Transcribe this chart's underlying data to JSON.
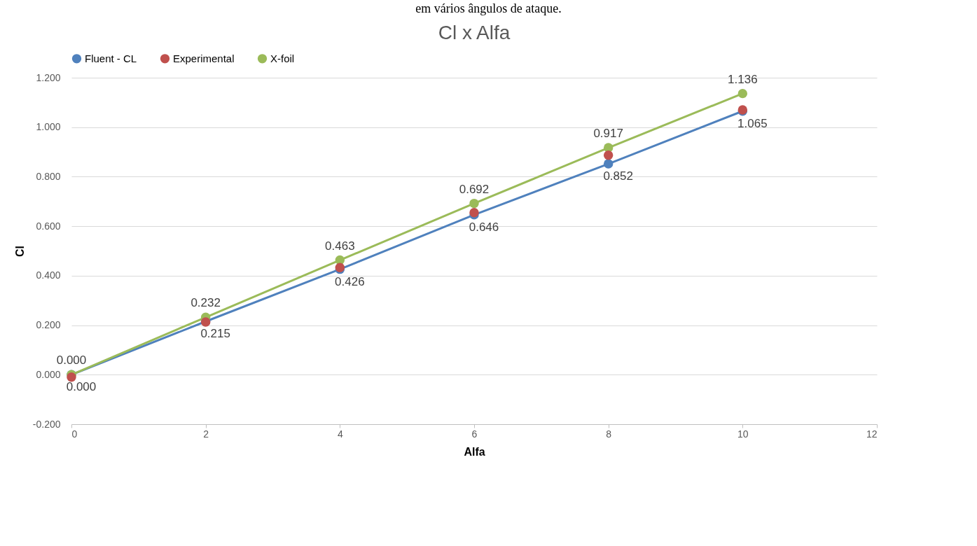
{
  "chart_data": {
    "type": "line",
    "title": "Cl x Alfa",
    "xlabel": "Alfa",
    "ylabel": "Cl",
    "annotations": [
      "em vários ângulos de ataque."
    ],
    "x": [
      0,
      2,
      4,
      6,
      8,
      10
    ],
    "series": [
      {
        "name": "Fluent - CL",
        "color": "#4f81bd",
        "values": [
          0.0,
          0.215,
          0.426,
          0.646,
          0.852,
          1.065
        ],
        "value_labels": [
          "0.000",
          "0.215",
          "0.426",
          "0.646",
          "0.852",
          "1.065"
        ]
      },
      {
        "name": "Experimental",
        "type": "scatter",
        "color": "#c0504d",
        "values": [
          -0.01,
          0.213,
          0.433,
          0.655,
          0.887,
          1.07
        ]
      },
      {
        "name": "X-foil",
        "color": "#9bbb59",
        "values": [
          0.0,
          0.232,
          0.463,
          0.692,
          0.917,
          1.136
        ],
        "value_labels": [
          "0.000",
          "0.232",
          "0.463",
          "0.692",
          "0.917",
          "1.136"
        ]
      }
    ],
    "xlim": [
      0,
      12
    ],
    "xticks": [
      0,
      2,
      4,
      6,
      8,
      10,
      12
    ],
    "ylim": [
      -0.2,
      1.2
    ],
    "yticks": [
      {
        "value": -0.2,
        "label": "-0.200"
      },
      {
        "value": 0,
        "label": "0.000"
      },
      {
        "value": 0.2,
        "label": "0.200"
      },
      {
        "value": 0.4,
        "label": "0.400"
      },
      {
        "value": 0.6,
        "label": "0.600"
      },
      {
        "value": 0.8,
        "label": "0.800"
      },
      {
        "value": 1.0,
        "label": "1.000"
      },
      {
        "value": 1.2,
        "label": "1.200"
      }
    ],
    "grid": "y",
    "legend": "top",
    "marker": "circle",
    "line_style": "solid"
  }
}
